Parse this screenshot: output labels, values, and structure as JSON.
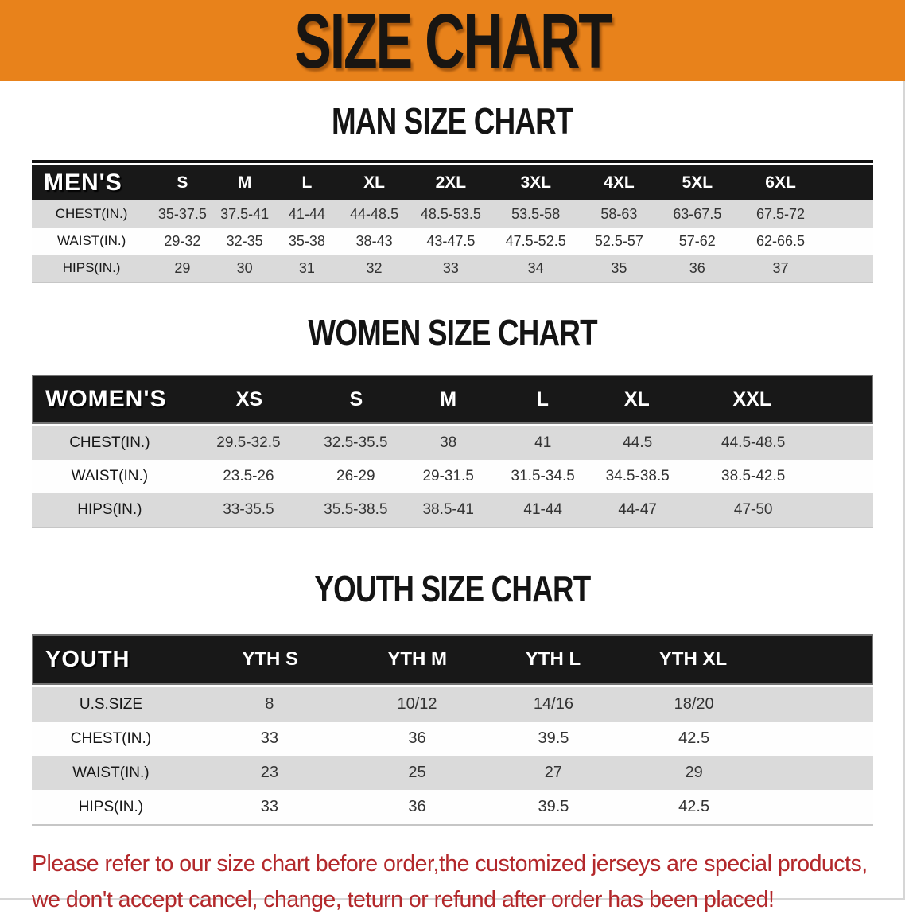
{
  "banner": {
    "title": "SIZE CHART",
    "background_color": "#e8821b",
    "text_color": "#181512"
  },
  "colors": {
    "table_header_bg": "#181818",
    "row_stripe_gray": "#dadada",
    "row_stripe_white": "#fefefe",
    "note_red": "#b3282b"
  },
  "sections": [
    {
      "id": "men",
      "heading": "MAN SIZE CHART",
      "table": {
        "header_label": "MEN'S",
        "columns": [
          "S",
          "M",
          "L",
          "XL",
          "2XL",
          "3XL",
          "4XL",
          "5XL",
          "6XL"
        ],
        "rows": [
          {
            "label": "CHEST(IN.)",
            "values": [
              "35-37.5",
              "37.5-41",
              "41-44",
              "44-48.5",
              "48.5-53.5",
              "53.5-58",
              "58-63",
              "63-67.5",
              "67.5-72"
            ]
          },
          {
            "label": "WAIST(IN.)",
            "values": [
              "29-32",
              "32-35",
              "35-38",
              "38-43",
              "43-47.5",
              "47.5-52.5",
              "52.5-57",
              "57-62",
              "62-66.5"
            ]
          },
          {
            "label": "HIPS(IN.)",
            "values": [
              "29",
              "30",
              "31",
              "32",
              "33",
              "34",
              "35",
              "36",
              "37"
            ]
          }
        ]
      }
    },
    {
      "id": "women",
      "heading": "WOMEN SIZE CHART",
      "table": {
        "header_label": "WOMEN'S",
        "columns": [
          "XS",
          "S",
          "M",
          "L",
          "XL",
          "XXL"
        ],
        "rows": [
          {
            "label": "CHEST(IN.)",
            "values": [
              "29.5-32.5",
              "32.5-35.5",
              "38",
              "41",
              "44.5",
              "44.5-48.5"
            ]
          },
          {
            "label": "WAIST(IN.)",
            "values": [
              "23.5-26",
              "26-29",
              "29-31.5",
              "31.5-34.5",
              "34.5-38.5",
              "38.5-42.5"
            ]
          },
          {
            "label": "HIPS(IN.)",
            "values": [
              "33-35.5",
              "35.5-38.5",
              "38.5-41",
              "41-44",
              "44-47",
              "47-50"
            ]
          }
        ]
      }
    },
    {
      "id": "youth",
      "heading": "YOUTH SIZE CHART",
      "table": {
        "header_label": "YOUTH",
        "columns": [
          "YTH S",
          "YTH M",
          "YTH L",
          "YTH XL"
        ],
        "rows": [
          {
            "label": "U.S.SIZE",
            "values": [
              "8",
              "10/12",
              "14/16",
              "18/20"
            ]
          },
          {
            "label": "CHEST(IN.)",
            "values": [
              "33",
              "36",
              "39.5",
              "42.5"
            ]
          },
          {
            "label": "WAIST(IN.)",
            "values": [
              "23",
              "25",
              "27",
              "29"
            ]
          },
          {
            "label": "HIPS(IN.)",
            "values": [
              "33",
              "36",
              "39.5",
              "42.5"
            ]
          }
        ]
      }
    }
  ],
  "footer_note": {
    "lines": [
      "Please refer to our size chart before order,the customized jerseys are special products,",
      "we don't accept cancel, change, teturn or refund after order has been placed!"
    ]
  }
}
